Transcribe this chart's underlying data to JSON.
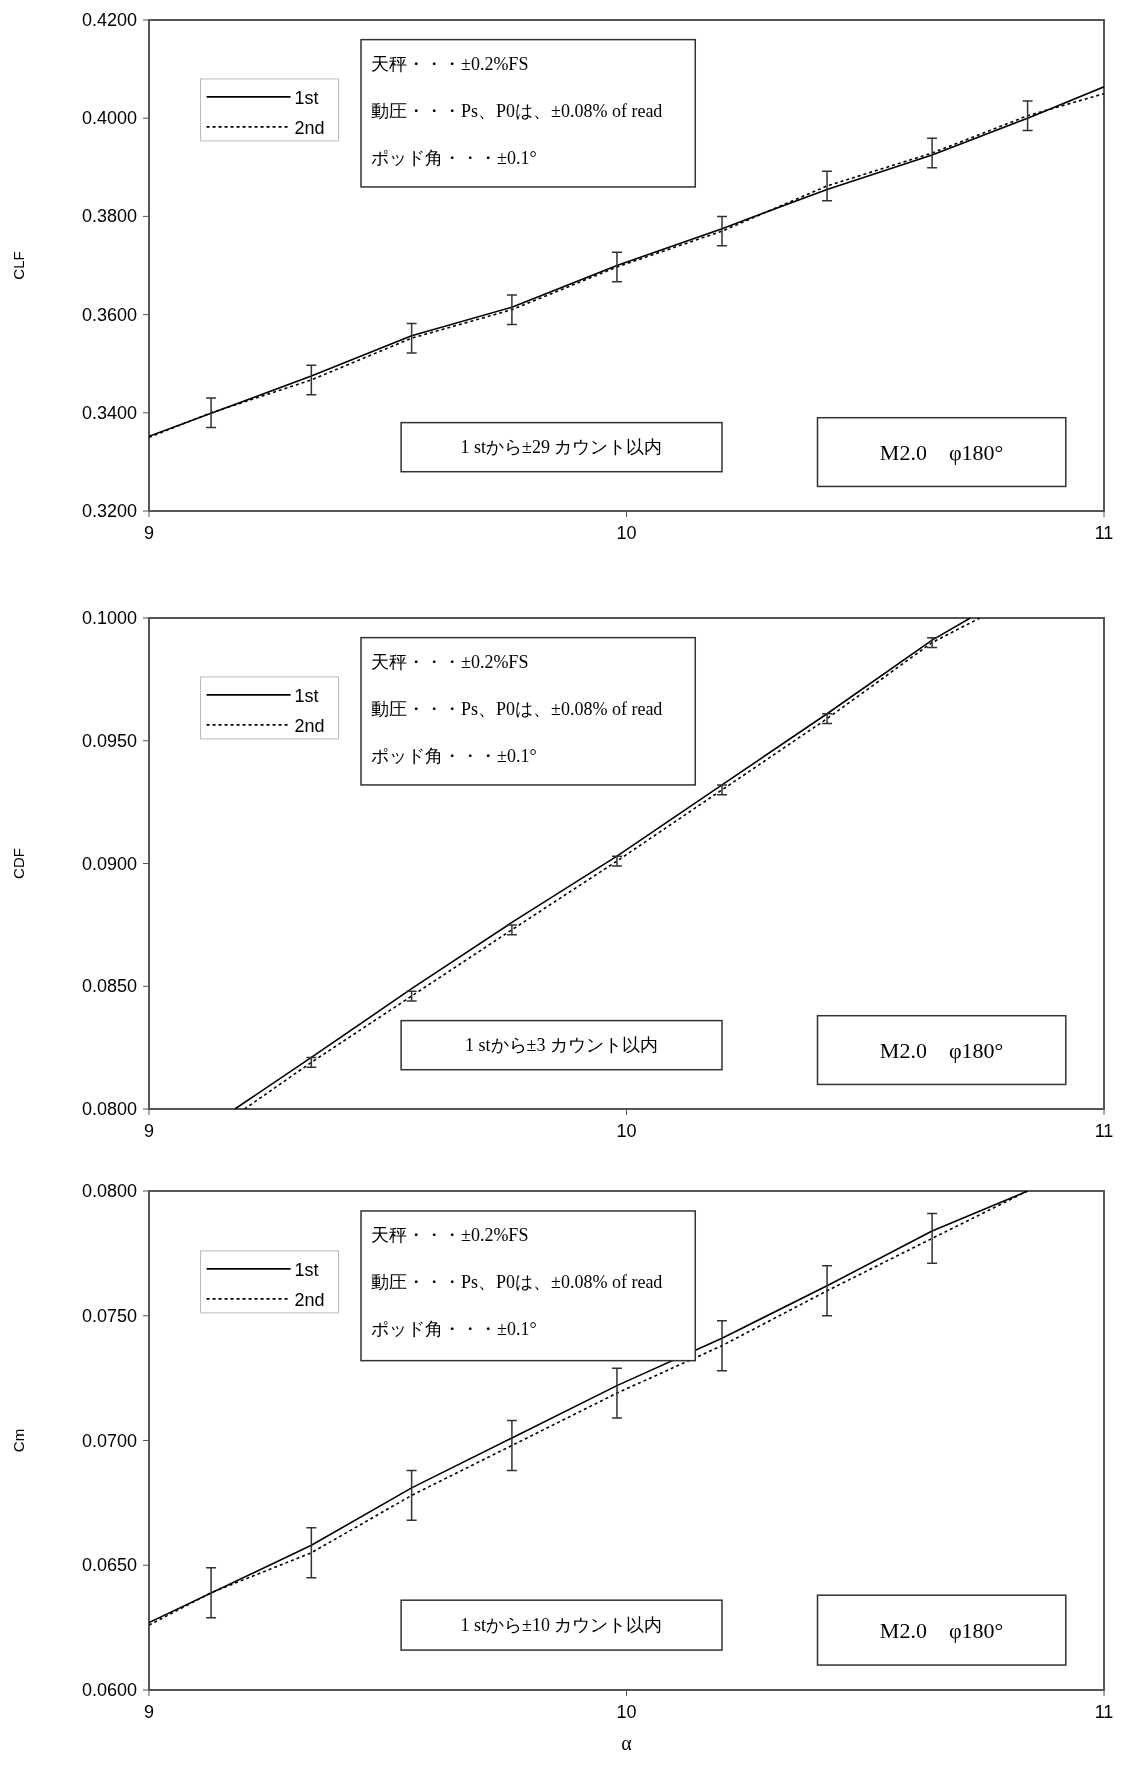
{
  "chart_data": [
    {
      "type": "line",
      "ylabel": "CLF",
      "xlim": [
        9,
        11
      ],
      "xticks": [
        9,
        10,
        11
      ],
      "ylim": [
        0.32,
        0.42
      ],
      "yticks": [
        {
          "value": 0.32,
          "label": "0.3200"
        },
        {
          "value": 0.34,
          "label": "0.3400"
        },
        {
          "value": 0.36,
          "label": "0.3600"
        },
        {
          "value": 0.38,
          "label": "0.3800"
        },
        {
          "value": 0.4,
          "label": "0.4000"
        },
        {
          "value": 0.42,
          "label": "0.4200"
        }
      ],
      "legend": "top left",
      "annotations": [
        "天秤・・・±0.2%FS",
        "動圧・・・Ps、P0は、±0.08% of read",
        "ポッド角・・・±0.1°",
        "1 stから±29 カウント以内",
        "M2.0　φ180°"
      ],
      "series": [
        {
          "name": "1st",
          "color": "#000000",
          "line_style": "solid",
          "x": [
            9,
            9.34,
            9.55,
            9.76,
            9.98,
            10.2,
            10.42,
            10.64,
            10.84,
            11
          ],
          "values": [
            0.3352,
            0.3475,
            0.3557,
            0.3615,
            0.37,
            0.3775,
            0.3855,
            0.3925,
            0.4,
            0.4064
          ]
        },
        {
          "name": "2nd",
          "color": "#000000",
          "line_style": "dotted",
          "x": [
            9,
            9.13,
            9.34,
            9.55,
            9.76,
            9.98,
            10.2,
            10.42,
            10.64,
            10.84,
            11
          ],
          "values": [
            0.335,
            0.34,
            0.3467,
            0.3552,
            0.361,
            0.3697,
            0.377,
            0.3862,
            0.3929,
            0.4005,
            0.405
          ],
          "errors": [
            null,
            0.003,
            0.003,
            0.003,
            0.003,
            0.003,
            0.003,
            0.003,
            0.003,
            0.003,
            null
          ]
        }
      ]
    },
    {
      "type": "line",
      "ylabel": "CDF",
      "xlim": [
        9,
        11
      ],
      "xticks": [
        9,
        10,
        11
      ],
      "ylim": [
        0.08,
        0.1
      ],
      "yticks": [
        {
          "value": 0.08,
          "label": "0.0800"
        },
        {
          "value": 0.085,
          "label": "0.0850"
        },
        {
          "value": 0.09,
          "label": "0.0900"
        },
        {
          "value": 0.095,
          "label": "0.0950"
        },
        {
          "value": 0.1,
          "label": "0.1000"
        }
      ],
      "legend": "top left",
      "annotations": [
        "天秤・・・±0.2%FS",
        "動圧・・・Ps、P0は、±0.08% of read",
        "ポッド角・・・±0.1°",
        "1 stから±3 カウント以内",
        "M2.0　φ180°"
      ],
      "series": [
        {
          "name": "1st",
          "color": "#000000",
          "line_style": "solid",
          "x": [
            9.18,
            9.34,
            9.55,
            9.76,
            9.98,
            10.2,
            10.42,
            10.64,
            10.72
          ],
          "values": [
            0.08,
            0.0821,
            0.0849,
            0.0876,
            0.0903,
            0.0932,
            0.0961,
            0.0991,
            0.1
          ]
        },
        {
          "name": "2nd",
          "color": "#000000",
          "line_style": "dotted",
          "x": [
            9.2,
            9.34,
            9.55,
            9.76,
            9.98,
            10.2,
            10.42,
            10.64,
            10.74
          ],
          "values": [
            0.08,
            0.0819,
            0.0846,
            0.0873,
            0.0901,
            0.093,
            0.0959,
            0.099,
            0.1
          ],
          "errors": [
            null,
            0.0002,
            0.0002,
            0.0002,
            0.0002,
            0.0002,
            0.0002,
            0.0002,
            null
          ]
        }
      ]
    },
    {
      "type": "line",
      "xlabel": "α",
      "ylabel": "Cm",
      "xlim": [
        9,
        11
      ],
      "xticks": [
        9,
        10,
        11
      ],
      "ylim": [
        0.06,
        0.08
      ],
      "yticks": [
        {
          "value": 0.06,
          "label": "0.0600"
        },
        {
          "value": 0.065,
          "label": "0.0650"
        },
        {
          "value": 0.07,
          "label": "0.0700"
        },
        {
          "value": 0.075,
          "label": "0.0750"
        },
        {
          "value": 0.08,
          "label": "0.0800"
        }
      ],
      "legend": "top left",
      "annotations": [
        "天秤・・・±0.2%FS",
        "動圧・・・Ps、P0は、±0.08% of read",
        "ポッド角・・・±0.1°",
        "1 stから±10 カウント以内",
        "M2.0　φ180°"
      ],
      "series": [
        {
          "name": "1st",
          "color": "#000000",
          "line_style": "solid",
          "x": [
            9,
            9.34,
            9.55,
            9.76,
            9.98,
            10.2,
            10.42,
            10.64,
            10.84
          ],
          "values": [
            0.0627,
            0.0658,
            0.0681,
            0.0701,
            0.0722,
            0.0741,
            0.0762,
            0.0784,
            0.08
          ]
        },
        {
          "name": "2nd",
          "color": "#000000",
          "line_style": "dotted",
          "x": [
            9,
            9.13,
            9.34,
            9.55,
            9.76,
            9.98,
            10.2,
            10.42,
            10.64,
            10.84
          ],
          "values": [
            0.0626,
            0.0639,
            0.0655,
            0.0678,
            0.0698,
            0.0719,
            0.0738,
            0.076,
            0.0781,
            0.08
          ],
          "errors": [
            null,
            0.001,
            0.001,
            0.001,
            0.001,
            0.001,
            0.001,
            0.001,
            0.001,
            null
          ]
        }
      ]
    }
  ]
}
